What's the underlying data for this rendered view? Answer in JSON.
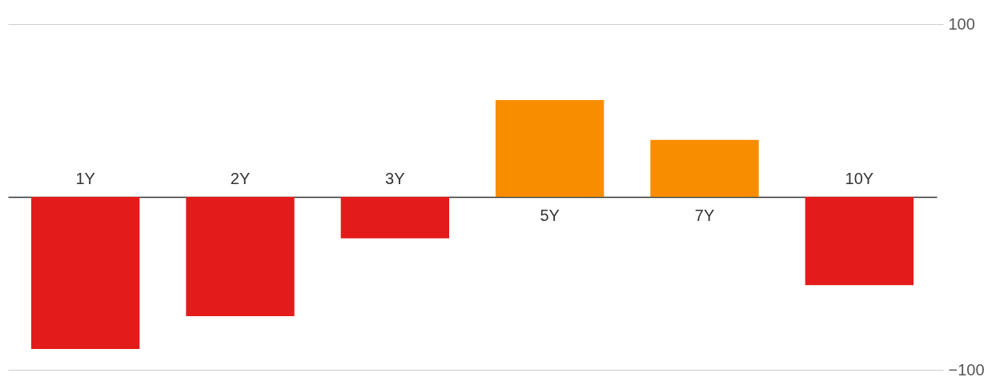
{
  "chart_data": {
    "type": "bar",
    "categories": [
      "1Y",
      "2Y",
      "3Y",
      "5Y",
      "7Y",
      "10Y"
    ],
    "values": [
      -88,
      -69,
      -24,
      56,
      33,
      -51
    ],
    "colors": [
      "#e31b1b",
      "#e31b1b",
      "#e31b1b",
      "#f88d00",
      "#f88d00",
      "#e31b1b"
    ],
    "ylim": [
      -100,
      100
    ],
    "yticks": [
      -100,
      100
    ],
    "grid": "y"
  }
}
